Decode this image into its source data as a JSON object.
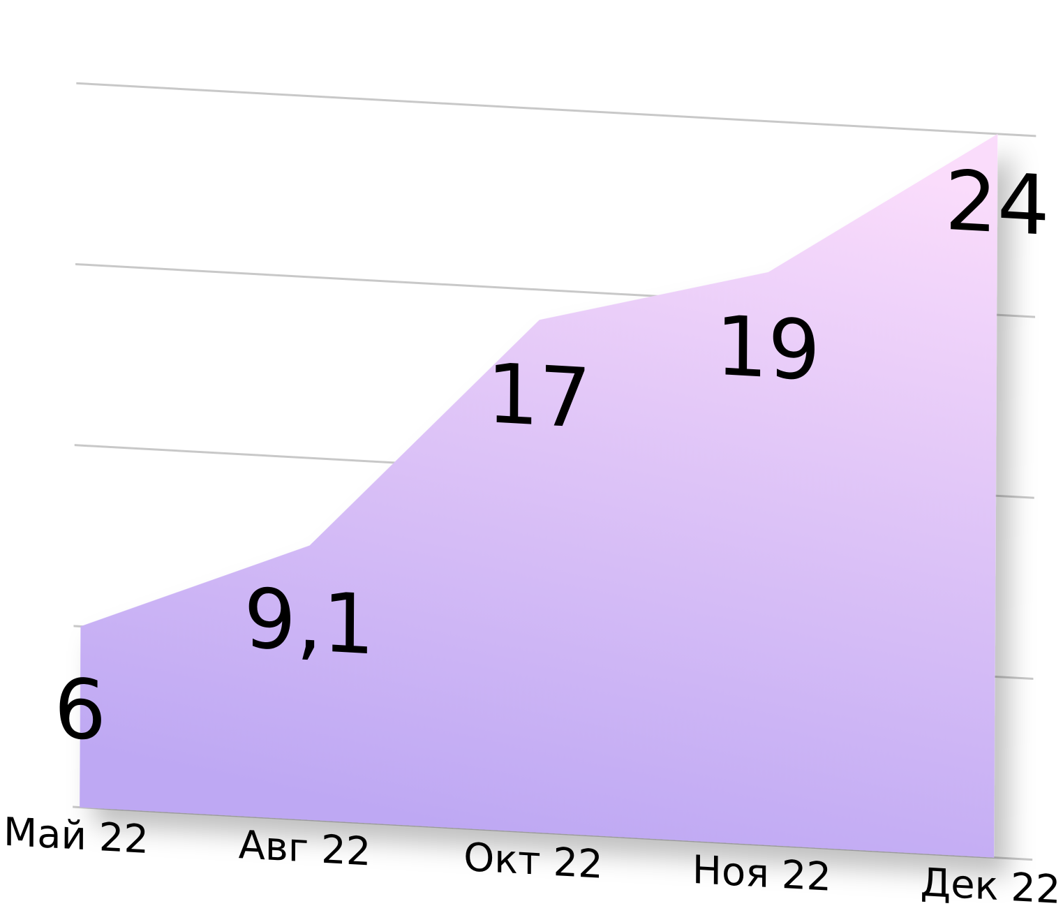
{
  "chart_data": {
    "type": "area",
    "categories": [
      "Май 22",
      "Авг 22",
      "Окт 22",
      "Ноя 22",
      "Дек 22"
    ],
    "values": [
      6,
      9.1,
      17,
      19,
      24
    ],
    "value_labels": [
      "6",
      "9,1",
      "17",
      "19",
      "24"
    ],
    "color": "#bea8f3",
    "ylim": [
      0,
      25
    ],
    "yticks": [
      0,
      6,
      12,
      18,
      24
    ],
    "grid": true
  }
}
